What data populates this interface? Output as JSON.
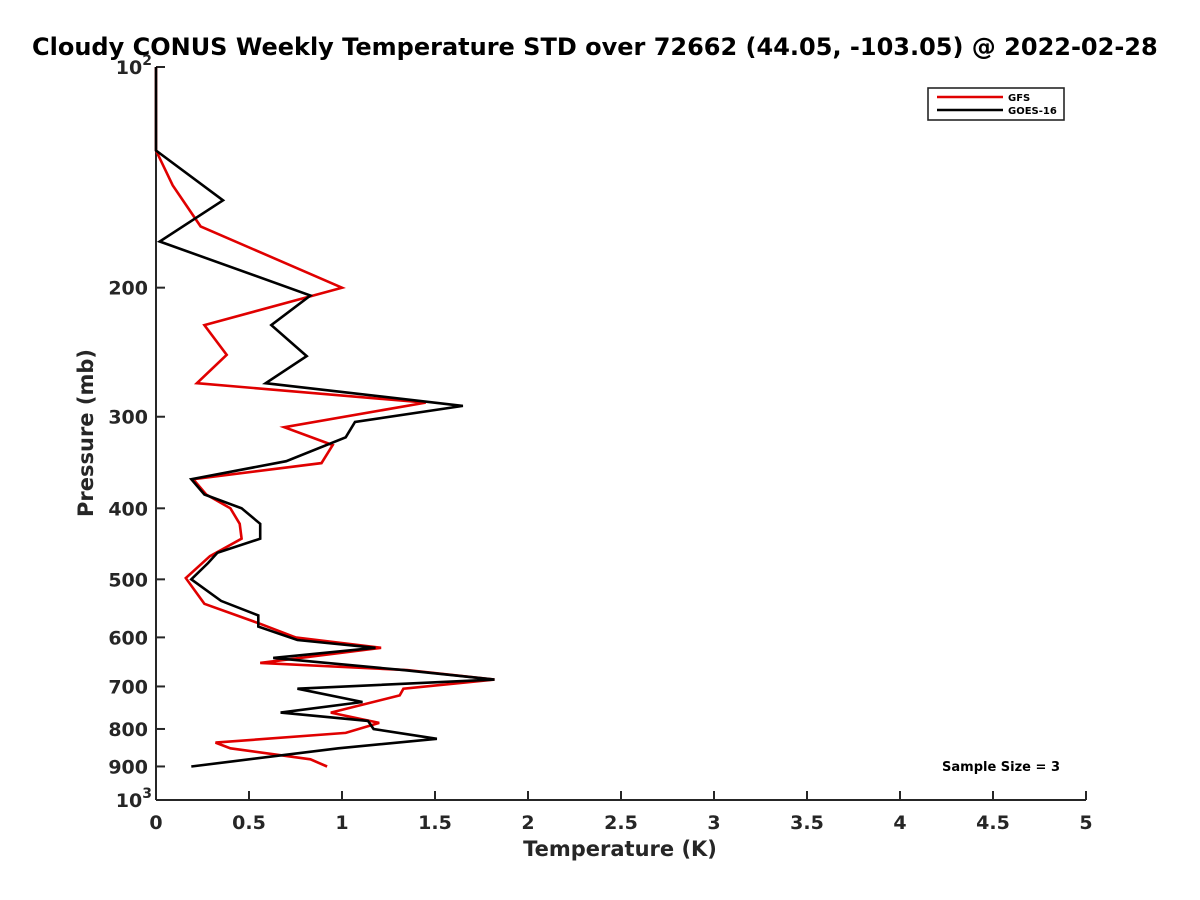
{
  "chart_data": {
    "type": "line",
    "title": "Cloudy CONUS Weekly Temperature STD over 72662 (44.05, -103.05) @ 2022-02-28",
    "xlabel": "Temperature (K)",
    "ylabel": "Pressure (mb)",
    "xlim": [
      0,
      5
    ],
    "ylim": [
      100,
      1000
    ],
    "y_scale": "log",
    "y_reversed": true,
    "grid": false,
    "legend_position": "top-right",
    "x_ticks": [
      0,
      0.5,
      1,
      1.5,
      2,
      2.5,
      3,
      3.5,
      4,
      4.5,
      5
    ],
    "x_tick_labels": [
      "0",
      "0.5",
      "1",
      "1.5",
      "2",
      "2.5",
      "3",
      "3.5",
      "4",
      "4.5",
      "5"
    ],
    "y_ticks": [
      100,
      200,
      300,
      400,
      500,
      600,
      700,
      800,
      900,
      1000
    ],
    "y_tick_labels": [
      "10²",
      "200",
      "300",
      "400",
      "500",
      "600",
      "700",
      "800",
      "900",
      "10³"
    ],
    "annotation": "Sample Size = 3",
    "series": [
      {
        "name": "GFS",
        "color": "#e00000",
        "points": [
          [
            0,
            100
          ],
          [
            0,
            130
          ],
          [
            0.09,
            145
          ],
          [
            0.24,
            165
          ],
          [
            1.0,
            200
          ],
          [
            0.26,
            225
          ],
          [
            0.38,
            247
          ],
          [
            0.22,
            270
          ],
          [
            1.45,
            287
          ],
          [
            0.69,
            310
          ],
          [
            0.95,
            328
          ],
          [
            0.89,
            347
          ],
          [
            0.2,
            365
          ],
          [
            0.27,
            383
          ],
          [
            0.4,
            400
          ],
          [
            0.45,
            420
          ],
          [
            0.46,
            440
          ],
          [
            0.29,
            465
          ],
          [
            0.16,
            498
          ],
          [
            0.26,
            540
          ],
          [
            0.56,
            575
          ],
          [
            0.75,
            600
          ],
          [
            1.21,
            620
          ],
          [
            0.56,
            650
          ],
          [
            1.35,
            665
          ],
          [
            1.82,
            685
          ],
          [
            1.33,
            705
          ],
          [
            1.31,
            720
          ],
          [
            0.94,
            760
          ],
          [
            1.2,
            785
          ],
          [
            1.02,
            810
          ],
          [
            0.32,
            835
          ],
          [
            0.4,
            850
          ],
          [
            0.83,
            880
          ],
          [
            0.92,
            900
          ]
        ]
      },
      {
        "name": "GOES-16",
        "color": "#000000",
        "points": [
          [
            0,
            100
          ],
          [
            0,
            130
          ],
          [
            0.36,
            152
          ],
          [
            0.02,
            173
          ],
          [
            0.83,
            205
          ],
          [
            0.62,
            225
          ],
          [
            0.81,
            248
          ],
          [
            0.59,
            270
          ],
          [
            1.65,
            290
          ],
          [
            1.07,
            305
          ],
          [
            1.02,
            320
          ],
          [
            0.7,
            345
          ],
          [
            0.19,
            365
          ],
          [
            0.26,
            383
          ],
          [
            0.46,
            400
          ],
          [
            0.56,
            420
          ],
          [
            0.56,
            440
          ],
          [
            0.33,
            460
          ],
          [
            0.28,
            475
          ],
          [
            0.19,
            500
          ],
          [
            0.35,
            535
          ],
          [
            0.55,
            560
          ],
          [
            0.55,
            580
          ],
          [
            0.76,
            605
          ],
          [
            1.18,
            620
          ],
          [
            0.63,
            640
          ],
          [
            1.33,
            665
          ],
          [
            1.82,
            685
          ],
          [
            0.76,
            705
          ],
          [
            1.11,
            735
          ],
          [
            0.67,
            760
          ],
          [
            1.14,
            780
          ],
          [
            1.17,
            800
          ],
          [
            1.51,
            825
          ],
          [
            0.98,
            850
          ],
          [
            0.19,
            900
          ]
        ]
      }
    ]
  }
}
